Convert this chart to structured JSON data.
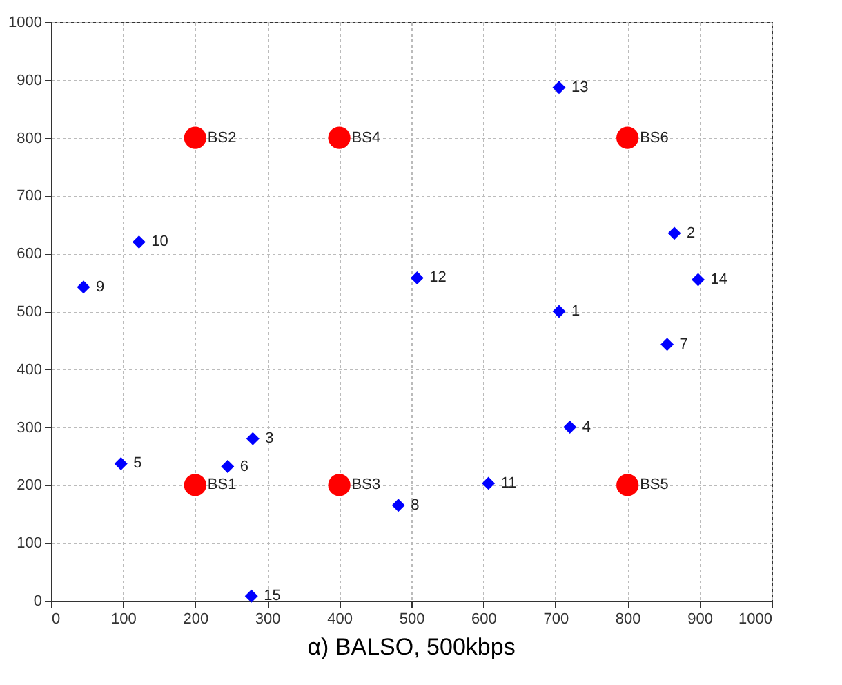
{
  "chart_data": {
    "type": "scatter",
    "title": "α) BALSO, 500kbps",
    "xlim": [
      0,
      1000
    ],
    "ylim": [
      0,
      1000
    ],
    "xticks": [
      0,
      100,
      200,
      300,
      400,
      500,
      600,
      700,
      800,
      900,
      1000
    ],
    "yticks": [
      0,
      100,
      200,
      300,
      400,
      500,
      600,
      700,
      800,
      900,
      1000
    ],
    "grid": true,
    "series": [
      {
        "type": "scatter",
        "marker": "diamond",
        "color": "#0000ff",
        "x": [
          705,
          865,
          280,
          720,
          97,
          245,
          855,
          482,
          45,
          122,
          607,
          508,
          705,
          898,
          278
        ],
        "values": [
          500,
          635,
          280,
          300,
          237,
          232,
          443,
          165,
          542,
          620,
          203,
          558,
          887,
          555,
          8
        ]
      },
      {
        "type": "scatter",
        "marker": "circle",
        "color": "#ff0000",
        "x": [
          200,
          200,
          400,
          400,
          800,
          800
        ],
        "values": [
          200,
          800,
          200,
          800,
          200,
          800
        ]
      }
    ],
    "annotations": [
      {
        "text": "1",
        "x": 705,
        "y": 500
      },
      {
        "text": "2",
        "x": 865,
        "y": 635
      },
      {
        "text": "3",
        "x": 280,
        "y": 280
      },
      {
        "text": "4",
        "x": 720,
        "y": 300
      },
      {
        "text": "5",
        "x": 97,
        "y": 237
      },
      {
        "text": "6",
        "x": 245,
        "y": 232
      },
      {
        "text": "7",
        "x": 855,
        "y": 443
      },
      {
        "text": "8",
        "x": 482,
        "y": 165
      },
      {
        "text": "9",
        "x": 45,
        "y": 542
      },
      {
        "text": "10",
        "x": 122,
        "y": 620
      },
      {
        "text": "11",
        "x": 607,
        "y": 203
      },
      {
        "text": "12",
        "x": 508,
        "y": 558
      },
      {
        "text": "13",
        "x": 705,
        "y": 887
      },
      {
        "text": "14",
        "x": 898,
        "y": 555
      },
      {
        "text": "15",
        "x": 278,
        "y": 8
      },
      {
        "text": "BS1",
        "x": 200,
        "y": 200
      },
      {
        "text": "BS2",
        "x": 200,
        "y": 800
      },
      {
        "text": "BS3",
        "x": 400,
        "y": 200
      },
      {
        "text": "BS4",
        "x": 400,
        "y": 800
      },
      {
        "text": "BS5",
        "x": 800,
        "y": 200
      },
      {
        "text": "BS6",
        "x": 800,
        "y": 800
      }
    ]
  }
}
